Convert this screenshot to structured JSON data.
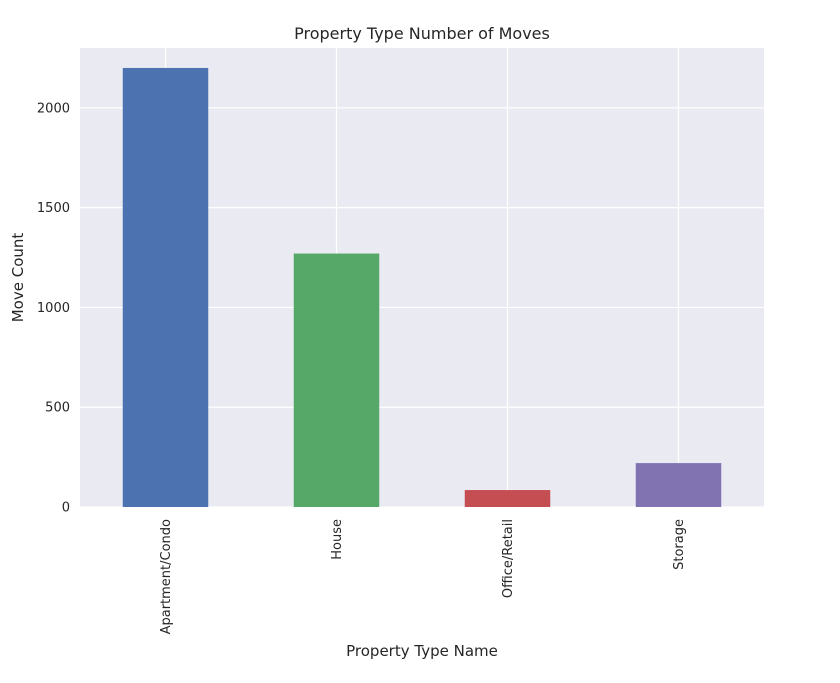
{
  "chart_data": {
    "type": "bar",
    "title": "Property Type Number of Moves",
    "xlabel": "Property Type Name",
    "ylabel": "Move Count",
    "categories": [
      "Apartment/Condo",
      "House",
      "Office/Retail",
      "Storage"
    ],
    "values": [
      2200,
      1270,
      85,
      220
    ],
    "colors": [
      "#4c72b0",
      "#55a868",
      "#c44e52",
      "#8172b2"
    ],
    "ylim": [
      0,
      2300
    ],
    "yticks": [
      0,
      500,
      1000,
      1500,
      2000
    ],
    "grid": true,
    "background": "#eaeaf2",
    "gridColor": "#ffffff"
  }
}
